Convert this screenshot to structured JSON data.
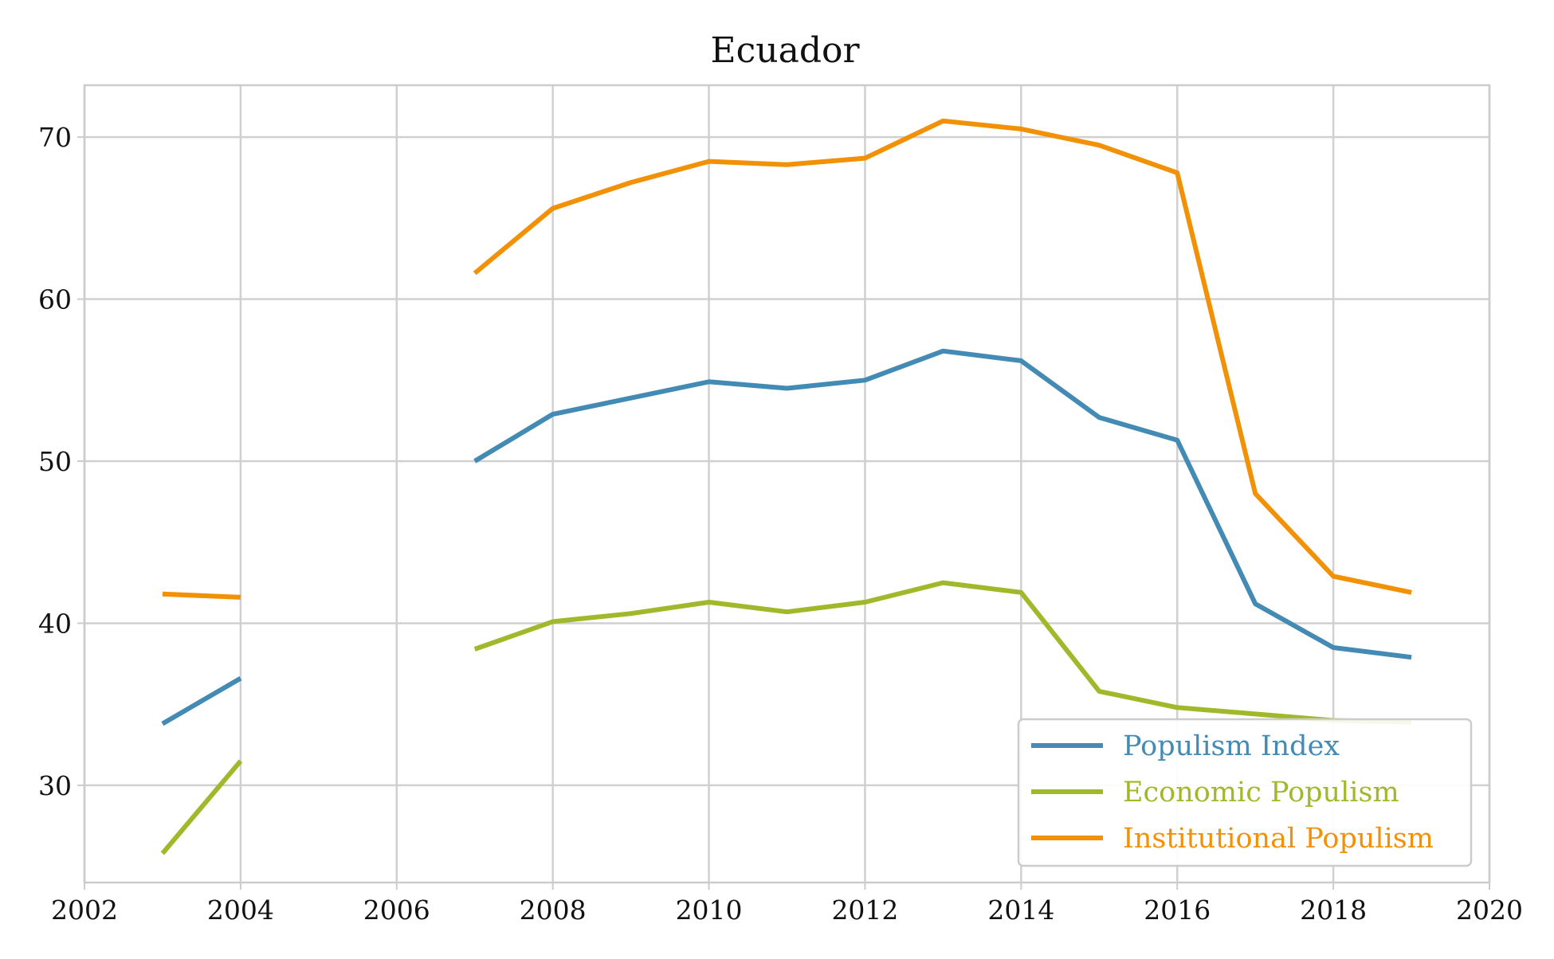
{
  "chart_data": {
    "type": "line",
    "title": "Ecuador",
    "xlabel": "",
    "ylabel": "",
    "xlim": [
      2002,
      2020
    ],
    "ylim": [
      24,
      73.2
    ],
    "xticks": [
      2002,
      2004,
      2006,
      2008,
      2010,
      2012,
      2014,
      2016,
      2018,
      2020
    ],
    "yticks": [
      30,
      40,
      50,
      60,
      70
    ],
    "grid": true,
    "legend_position": "lower-right",
    "series": [
      {
        "name": "Populism Index",
        "color": "#438bb4",
        "x": [
          2003,
          2004,
          2005,
          2006,
          2007,
          2008,
          2009,
          2010,
          2011,
          2012,
          2013,
          2014,
          2015,
          2016,
          2017,
          2018,
          2019
        ],
        "values": [
          33.8,
          36.6,
          null,
          null,
          50.0,
          52.9,
          53.9,
          54.9,
          54.5,
          55.0,
          56.8,
          56.2,
          52.7,
          51.3,
          41.2,
          38.5,
          37.9
        ]
      },
      {
        "name": "Economic Populism",
        "color": "#a0b92b",
        "x": [
          2003,
          2004,
          2005,
          2006,
          2007,
          2008,
          2009,
          2010,
          2011,
          2012,
          2013,
          2014,
          2015,
          2016,
          2017,
          2018,
          2019
        ],
        "values": [
          25.8,
          31.5,
          null,
          null,
          38.4,
          40.1,
          40.6,
          41.3,
          40.7,
          41.3,
          42.5,
          41.9,
          35.8,
          34.8,
          34.4,
          34.0,
          33.9
        ]
      },
      {
        "name": "Institutional Populism",
        "color": "#f29106",
        "x": [
          2003,
          2004,
          2005,
          2006,
          2007,
          2008,
          2009,
          2010,
          2011,
          2012,
          2013,
          2014,
          2015,
          2016,
          2017,
          2018,
          2019
        ],
        "values": [
          41.8,
          41.6,
          null,
          null,
          61.6,
          65.6,
          67.2,
          68.5,
          68.3,
          68.7,
          71.0,
          70.5,
          69.5,
          67.8,
          48.0,
          42.9,
          41.9
        ]
      }
    ]
  }
}
